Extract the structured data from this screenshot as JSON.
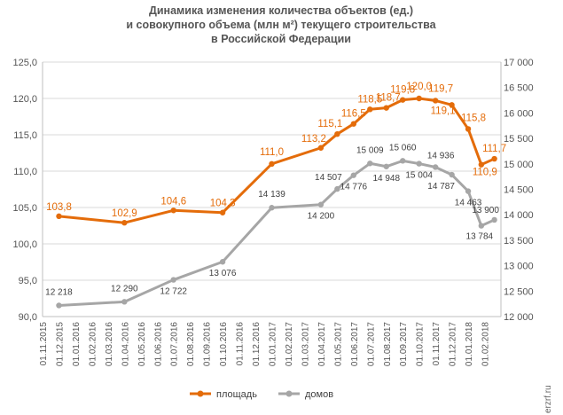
{
  "chart_data": {
    "type": "line",
    "title": [
      "Динамика изменения количества объектов (ед.)",
      "и совокупного объема (млн м²) текущего строительства",
      "в Российской Федерации"
    ],
    "categories": [
      "01.11.2015",
      "01.12.2015",
      "01.01.2016",
      "01.02.2016",
      "01.03.2016",
      "01.04.2016",
      "01.05.2016",
      "01.06.2016",
      "01.07.2016",
      "01.08.2016",
      "01.09.2016",
      "01.10.2016",
      "01.11.2016",
      "01.12.2016",
      "01.01.2017",
      "01.02.2017",
      "01.03.2017",
      "01.04.2017",
      "01.05.2017",
      "01.06.2017",
      "01.07.2017",
      "01.08.2017",
      "01.09.2017",
      "01.10.2017",
      "01.11.2017",
      "01.12.2017",
      "01.01.2018",
      "01.02.2018"
    ],
    "y_left": {
      "min": 90,
      "max": 125,
      "step": 5,
      "ticks": [
        "90,0",
        "95,0",
        "100,0",
        "105,0",
        "110,0",
        "115,0",
        "120,0",
        "125,0"
      ]
    },
    "y_right": {
      "min": 12000,
      "max": 17000,
      "step": 500,
      "ticks": [
        "12 000",
        "12 500",
        "13 000",
        "13 500",
        "14 000",
        "14 500",
        "15 000",
        "15 500",
        "16 000",
        "16 500",
        "17 000"
      ]
    },
    "series": [
      {
        "name": "площадь",
        "axis": "left",
        "color": "#e46c0a",
        "points": [
          {
            "x": 1.0,
            "y": 103.8,
            "label": "103,8"
          },
          {
            "x": 5.0,
            "y": 102.9,
            "label": "102,9"
          },
          {
            "x": 8.0,
            "y": 104.6,
            "label": "104,6"
          },
          {
            "x": 11.0,
            "y": 104.3,
            "label": "104,3"
          },
          {
            "x": 14.0,
            "y": 111.0,
            "label": "111,0"
          },
          {
            "x": 17.0,
            "y": 113.2,
            "label": "113,2"
          },
          {
            "x": 18.0,
            "y": 115.1,
            "label": "115,1"
          },
          {
            "x": 19.0,
            "y": 116.5,
            "label": "116,5"
          },
          {
            "x": 20.0,
            "y": 118.5,
            "label": "118,5"
          },
          {
            "x": 21.0,
            "y": 118.7,
            "label": "118,7"
          },
          {
            "x": 22.0,
            "y": 119.8,
            "label": "119,8"
          },
          {
            "x": 23.0,
            "y": 120.0,
            "label": "120,0"
          },
          {
            "x": 24.0,
            "y": 119.7,
            "label": "119,7"
          },
          {
            "x": 25.0,
            "y": 119.1,
            "label": "119,1"
          },
          {
            "x": 26.0,
            "y": 115.8,
            "label": "115,8"
          },
          {
            "x": 26.8,
            "y": 110.9,
            "label": "110,9"
          },
          {
            "x": 27.6,
            "y": 111.7,
            "label": "111,7"
          }
        ]
      },
      {
        "name": "домов",
        "axis": "right",
        "color": "#a6a6a6",
        "points": [
          {
            "x": 1.0,
            "y": 12218,
            "label": "12 218"
          },
          {
            "x": 5.0,
            "y": 12290,
            "label": "12 290"
          },
          {
            "x": 8.0,
            "y": 12722,
            "label": "12 722"
          },
          {
            "x": 11.0,
            "y": 13076,
            "label": "13 076"
          },
          {
            "x": 14.0,
            "y": 14139,
            "label": "14 139"
          },
          {
            "x": 17.0,
            "y": 14200,
            "label": "14 200"
          },
          {
            "x": 18.0,
            "y": 14507,
            "label": "14 507"
          },
          {
            "x": 19.0,
            "y": 14776,
            "label": "14 776"
          },
          {
            "x": 20.0,
            "y": 15009,
            "label": "15 009"
          },
          {
            "x": 21.0,
            "y": 14948,
            "label": "14 948"
          },
          {
            "x": 22.0,
            "y": 15060,
            "label": "15 060"
          },
          {
            "x": 23.0,
            "y": 15004,
            "label": "15 004"
          },
          {
            "x": 24.0,
            "y": 14936,
            "label": "14 936"
          },
          {
            "x": 25.0,
            "y": 14787,
            "label": "14 787"
          },
          {
            "x": 26.0,
            "y": 14463,
            "label": "14 463"
          },
          {
            "x": 26.8,
            "y": 13784,
            "label": "13 784"
          },
          {
            "x": 27.6,
            "y": 13900,
            "label": "13 900"
          }
        ]
      }
    ],
    "grid": true,
    "legend": "bottom"
  },
  "watermark": "erzrf.ru"
}
